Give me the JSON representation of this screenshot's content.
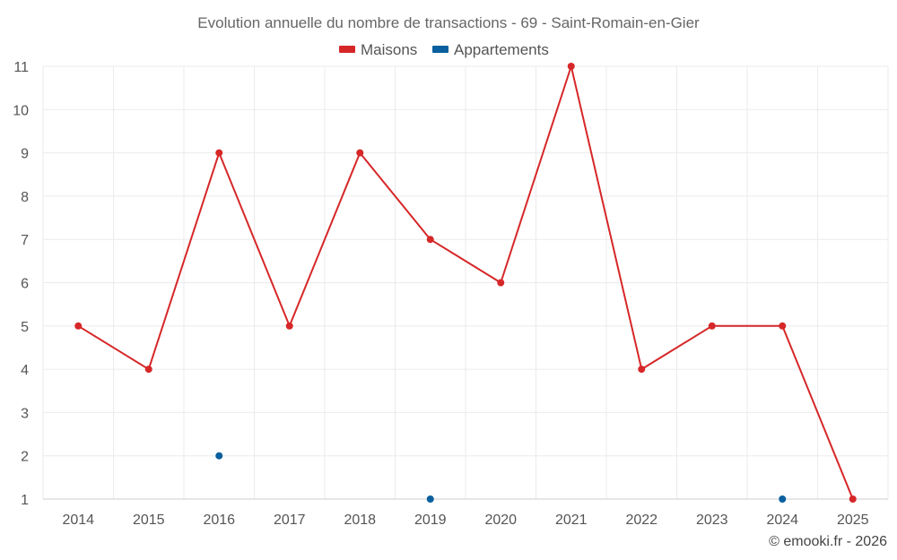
{
  "chart_data": {
    "type": "line",
    "title": "Evolution annuelle du nombre de transactions - 69 - Saint-Romain-en-Gier",
    "categories": [
      "2014",
      "2015",
      "2016",
      "2017",
      "2018",
      "2019",
      "2020",
      "2021",
      "2022",
      "2023",
      "2024",
      "2025"
    ],
    "series": [
      {
        "name": "Maisons",
        "color": "#d62728",
        "values": [
          5,
          4,
          9,
          5,
          9,
          7,
          6,
          11,
          4,
          5,
          5,
          1
        ]
      },
      {
        "name": "Appartements",
        "color": "#0a5f9e",
        "values": [
          null,
          null,
          2,
          null,
          null,
          1,
          null,
          null,
          null,
          null,
          1,
          null
        ]
      }
    ],
    "ylim": [
      1,
      11
    ],
    "yticks": [
      "1",
      "2",
      "3",
      "4",
      "5",
      "6",
      "7",
      "8",
      "9",
      "10",
      "11"
    ],
    "xlabel": "",
    "ylabel": "",
    "legend_position": "top-center",
    "grid": true
  },
  "credit": "© emooki.fr - 2026"
}
